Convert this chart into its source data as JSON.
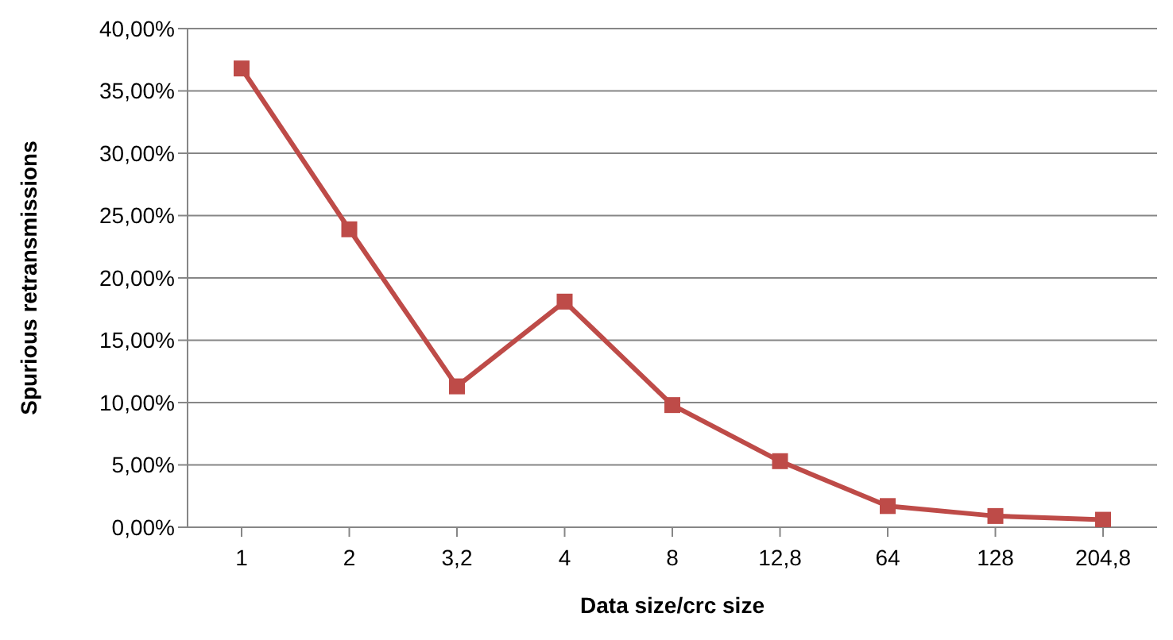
{
  "chart_data": {
    "type": "line",
    "xlabel": "Data size/crc size",
    "ylabel": "Spurious retransmissions",
    "categories": [
      "1",
      "2",
      "3,2",
      "4",
      "8",
      "12,8",
      "64",
      "128",
      "204,8"
    ],
    "series": [
      {
        "color": "#be4b48",
        "values": [
          36.8,
          23.9,
          11.3,
          18.1,
          9.8,
          5.3,
          1.7,
          0.9,
          0.6
        ]
      }
    ],
    "ylim": [
      0,
      40
    ],
    "yticks": [
      {
        "value": 0,
        "label": "0,00%"
      },
      {
        "value": 5,
        "label": "5,00%"
      },
      {
        "value": 10,
        "label": "10,00%"
      },
      {
        "value": 15,
        "label": "15,00%"
      },
      {
        "value": 20,
        "label": "20,00%"
      },
      {
        "value": 25,
        "label": "25,00%"
      },
      {
        "value": 30,
        "label": "30,00%"
      },
      {
        "value": 35,
        "label": "35,00%"
      },
      {
        "value": 40,
        "label": "40,00%"
      }
    ],
    "grid": "y",
    "marker": "square",
    "line_style": "solid"
  }
}
